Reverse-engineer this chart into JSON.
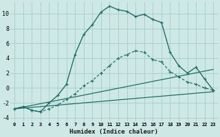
{
  "xlabel": "Humidex (Indice chaleur)",
  "background_color": "#cde8e5",
  "grid_color": "#aacfcc",
  "line_color": "#1e6e63",
  "xlim": [
    -0.5,
    23.5
  ],
  "ylim": [
    -4.5,
    11.5
  ],
  "yticks": [
    -4,
    -2,
    0,
    2,
    4,
    6,
    8,
    10
  ],
  "curve_main_x": [
    0,
    1,
    2,
    3,
    4,
    5,
    6,
    7,
    8,
    9,
    10,
    11,
    12,
    13,
    14,
    15,
    16,
    17,
    18,
    19,
    20,
    21,
    22,
    23
  ],
  "curve_main_y": [
    -2.8,
    -2.5,
    -3.0,
    -3.2,
    -2.0,
    -1.0,
    0.5,
    4.5,
    7.2,
    8.5,
    10.2,
    11.0,
    10.5,
    10.3,
    9.6,
    9.9,
    9.2,
    8.8,
    4.8,
    3.0,
    2.0,
    2.8,
    1.2,
    -0.3
  ],
  "curve_lower_x": [
    0,
    1,
    2,
    3,
    4,
    5,
    6,
    7,
    8,
    9,
    10,
    11,
    12,
    13,
    14,
    15,
    16,
    17,
    18,
    19,
    20,
    21,
    22,
    23
  ],
  "curve_lower_y": [
    -2.8,
    -2.5,
    -3.0,
    -3.2,
    -2.8,
    -2.3,
    -1.5,
    -0.8,
    0.3,
    1.0,
    2.0,
    3.0,
    4.0,
    4.5,
    5.0,
    4.8,
    3.8,
    3.5,
    2.2,
    1.5,
    0.8,
    0.5,
    0.0,
    -0.3
  ],
  "line1_x": [
    0,
    23
  ],
  "line1_y": [
    -2.8,
    2.5
  ],
  "line2_x": [
    0,
    23
  ],
  "line2_y": [
    -2.8,
    -0.5
  ]
}
